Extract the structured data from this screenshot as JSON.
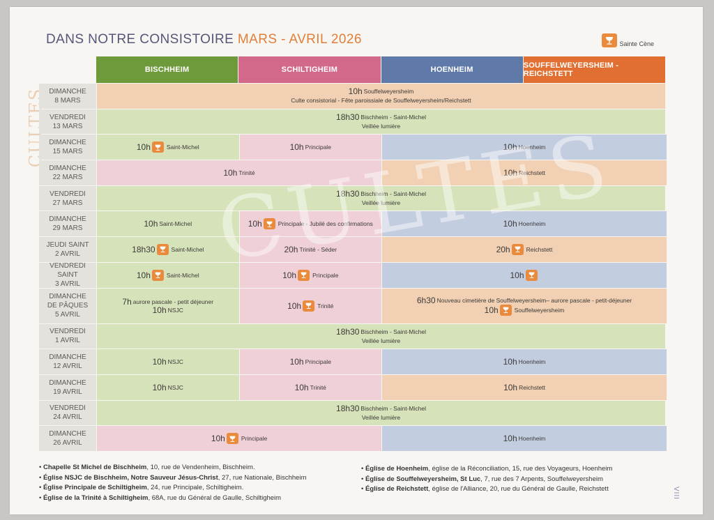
{
  "title": {
    "main": "DANS NOTRE CONSISTOIRE",
    "accent": "MARS - AVRIL 2026"
  },
  "legend": {
    "label": "Sainte Cène",
    "icon": "chalice-icon"
  },
  "side_label": "CULTES",
  "watermark": "CULTES",
  "colors": {
    "green": "#6f9a3c",
    "pink": "#d2698a",
    "blue": "#5f79a8",
    "orange": "#e16f32",
    "chalice": "#ea8a3c"
  },
  "headers": [
    "BISCHHEIM",
    "SCHILTIGHEIM",
    "HOENHEIM",
    "SOUFFELWEYERSHEIM - REICHSTETT"
  ],
  "rows": [
    {
      "day": "DIMANCHE",
      "date": "8 MARS",
      "cells": [
        {
          "color": "orange",
          "time": "10h",
          "place": "Souffelweyersheim",
          "sub": "Culte consistorial - Fête paroissiale de Souffelweyersheim/Reichstett"
        }
      ]
    },
    {
      "day": "VENDREDI",
      "date": "13 MARS",
      "cells": [
        {
          "color": "green",
          "time": "18h30",
          "place": "Bischheim - Saint-Michel",
          "sub": "Veillée lumière"
        }
      ]
    },
    {
      "day": "DIMANCHE",
      "date": "15 MARS",
      "cells": [
        {
          "color": "green",
          "time": "10h",
          "place": "Saint-Michel",
          "cene": true
        },
        {
          "color": "pink",
          "time": "10h",
          "place": "Principale"
        },
        {
          "color": "blue",
          "time": "10h",
          "place": "Hoenheim"
        }
      ]
    },
    {
      "day": "DIMANCHE",
      "date": "22 MARS",
      "cells": [
        {
          "color": "pink",
          "time": "10h",
          "place": "Trinité"
        },
        {
          "color": "orange",
          "time": "10h",
          "place": "Reichstett"
        }
      ]
    },
    {
      "day": "VENDREDI",
      "date": "27 MARS",
      "cells": [
        {
          "color": "green",
          "time": "18h30",
          "place": "Bischheim - Saint-Michel",
          "sub": "Veillée lumière"
        }
      ]
    },
    {
      "day": "DIMANCHE",
      "date": "29 MARS",
      "cells": [
        {
          "color": "green",
          "time": "10h",
          "place": "Saint-Michel"
        },
        {
          "color": "pink",
          "time": "10h",
          "place": "Principale - Jubilé des confirmations",
          "cene": true
        },
        {
          "color": "blue",
          "time": "10h",
          "place": "Hoenheim"
        }
      ]
    },
    {
      "day": "JEUDI SAINT",
      "date": "2 AVRIL",
      "cells": [
        {
          "color": "green",
          "time": "18h30",
          "place": "Saint-Michel",
          "cene": true
        },
        {
          "color": "pink",
          "time": "20h",
          "place": "Trinité - Séder"
        },
        {
          "color": "orange",
          "time": "20h",
          "place": "Reichstett",
          "cene": true
        }
      ]
    },
    {
      "day": "VENDREDI SAINT",
      "date": "3 AVRIL",
      "cells": [
        {
          "color": "green",
          "time": "10h",
          "place": "Saint-Michel",
          "cene": true
        },
        {
          "color": "pink",
          "time": "10h",
          "place": "Principale",
          "cene": true
        },
        {
          "color": "blue",
          "time": "10h",
          "place": "",
          "cene": true
        }
      ]
    },
    {
      "day": "DIMANCHE",
      "day2": "DE PÂQUES",
      "date": "5 AVRIL",
      "cells": [
        {
          "color": "green",
          "time": "7h",
          "place": "aurore pascale - petit déjeuner",
          "time2": "10h",
          "place2": "NSJC"
        },
        {
          "color": "pink",
          "time": "10h",
          "place": "Trinité",
          "cene": true
        },
        {
          "color": "orange",
          "time": "6h30",
          "place": "Nouveau cimetière de Souffelweyersheim– aurore pascale - petit-déjeuner",
          "time2": "10h",
          "place2": "Souffelweyersheim",
          "cene2": true
        }
      ]
    },
    {
      "day": "VENDREDI",
      "date": "1 AVRIL",
      "cells": [
        {
          "color": "green",
          "time": "18h30",
          "place": "Bischheim - Saint-Michel",
          "sub": "Veillée lumière"
        }
      ]
    },
    {
      "day": "DIMANCHE",
      "date": "12 AVRIL",
      "cells": [
        {
          "color": "green",
          "time": "10h",
          "place": "NSJC"
        },
        {
          "color": "pink",
          "time": "10h",
          "place": "Principale"
        },
        {
          "color": "blue",
          "time": "10h",
          "place": "Hoenheim"
        }
      ]
    },
    {
      "day": "DIMANCHE",
      "date": "19 AVRIL",
      "cells": [
        {
          "color": "green",
          "time": "10h",
          "place": "NSJC"
        },
        {
          "color": "pink",
          "time": "10h",
          "place": "Trinité"
        },
        {
          "color": "orange",
          "time": "10h",
          "place": "Reichstett"
        }
      ]
    },
    {
      "day": "VENDREDI",
      "date": "24 AVRIL",
      "cells": [
        {
          "color": "green",
          "time": "18h30",
          "place": "Bischheim - Saint-Michel",
          "sub": "Veillée lumière"
        }
      ]
    },
    {
      "day": "DIMANCHE",
      "date": "26 AVRIL",
      "cells": [
        {
          "color": "pink",
          "time": "10h",
          "place": "Principale",
          "cene": true
        },
        {
          "color": "blue",
          "time": "10h",
          "place": "Hoenheim"
        }
      ]
    }
  ],
  "addresses_left": [
    {
      "name": "Chapelle St Michel de Bischheim",
      "rest": ", 10, rue de Vendenheim, Bischheim."
    },
    {
      "name": "Église NSJC de Bischheim, Notre Sauveur Jésus-Christ",
      "rest": ", 27, rue Nationale, Bischheim"
    },
    {
      "name": "Église Principale de Schiltigheim",
      "rest": ", 24, rue Principale, Schiltigheim."
    },
    {
      "name": "Église de la Trinité à Schiltigheim",
      "rest": ", 68A, rue du Général de Gaulle, Schiltigheim"
    }
  ],
  "addresses_right": [
    {
      "name": "Église de Hoenheim",
      "rest": ", église de la Réconciliation, 15, rue des Voyageurs, Hoenheim"
    },
    {
      "name": "Église de Souffelweyersheim, St Luc",
      "rest": ", 7, rue des 7 Arpents, Souffelweyersheim"
    },
    {
      "name": "Église de Reichstett",
      "rest": ", église de l'Alliance, 20, rue du Général de Gaulle, Reichstett"
    }
  ],
  "page_number": "VIII"
}
